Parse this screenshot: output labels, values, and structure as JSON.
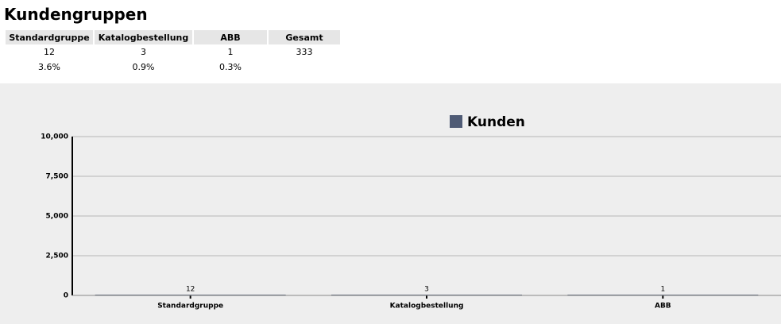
{
  "header": {
    "title": "Kundengruppen"
  },
  "table": {
    "columns": [
      "Standardgruppe",
      "Katalogbestellung",
      "ABB",
      "Gesamt"
    ],
    "rows": [
      [
        "12",
        "3",
        "1",
        "333"
      ],
      [
        "3.6%",
        "0.9%",
        "0.3%"
      ]
    ]
  },
  "chart_data": {
    "type": "bar",
    "categories": [
      "Standardgruppe",
      "Katalogbestellung",
      "ABB"
    ],
    "series": [
      {
        "name": "Kunden",
        "color": "#4f5b75",
        "values": [
          12,
          3,
          1
        ]
      }
    ],
    "ylim": [
      0,
      10000
    ],
    "yticks": [
      0,
      {
        "value": 2500,
        "label": "2,500"
      },
      {
        "value": 5000,
        "label": "5,000"
      },
      {
        "value": 7500,
        "label": "7,500"
      },
      {
        "value": 10000,
        "label": "10,000"
      }
    ],
    "grid": true,
    "legend": "top"
  }
}
